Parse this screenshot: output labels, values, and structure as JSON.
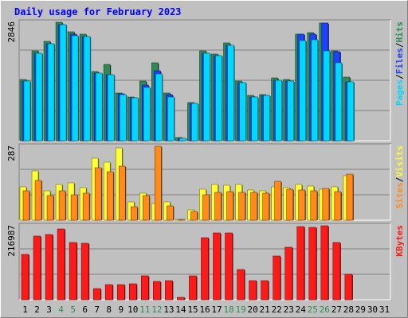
{
  "title": "Daily usage for February 2023",
  "colors": {
    "background": "#C0C0C0",
    "border_light": "#FFFFFF",
    "border_dark": "#808080",
    "title": "#0000FF",
    "hits": "#2E8B57",
    "files": "#1E40FF",
    "pages": "#00D8FF",
    "visits": "#FFFF33",
    "sites": "#FF8C1A",
    "kbytes": "#FF1A1A",
    "weekend_label": "#2E8B57",
    "tick_label": "#000000"
  },
  "chart_data": {
    "type": "bar",
    "categories": [
      "1",
      "2",
      "3",
      "4",
      "5",
      "6",
      "7",
      "8",
      "9",
      "10",
      "11",
      "12",
      "13",
      "14",
      "15",
      "16",
      "17",
      "18",
      "19",
      "20",
      "21",
      "22",
      "23",
      "24",
      "25",
      "26",
      "27",
      "28",
      "29",
      "30",
      "31"
    ],
    "weekend_categories": [
      "4",
      "5",
      "11",
      "12",
      "18",
      "19",
      "25",
      "26"
    ],
    "panels": [
      {
        "name": "hits-files-pages",
        "ymax_label": "2846",
        "ymax": 2846,
        "axis_labels": [
          {
            "text": "Hits",
            "color_key": "hits"
          },
          {
            "text": "Files",
            "color_key": "files"
          },
          {
            "text": "Pages",
            "color_key": "pages"
          }
        ],
        "series": [
          {
            "name": "Hits",
            "color_key": "hits",
            "values": [
              1475,
              2157,
              2380,
              2846,
              2610,
              2560,
              1670,
              1840,
              1150,
              1060,
              1430,
              1870,
              1140,
              75,
              920,
              2150,
              2080,
              2340,
              1440,
              1090,
              1110,
              1510,
              1470,
              2560,
              2600,
              2820,
              2150,
              1520,
              0,
              0,
              0
            ]
          },
          {
            "name": "Files",
            "color_key": "files",
            "values": [
              1430,
              2100,
              2330,
              2780,
              2560,
              2500,
              1620,
              1590,
              1120,
              1040,
              1330,
              1690,
              1100,
              60,
              890,
              2110,
              2050,
              2300,
              1390,
              1060,
              1080,
              1460,
              1440,
              2560,
              2560,
              2820,
              2140,
              1420,
              0,
              0,
              0
            ]
          },
          {
            "name": "Pages",
            "color_key": "pages",
            "values": [
              1430,
              2100,
              2330,
              2780,
              2520,
              2500,
              1620,
              1590,
              1100,
              1040,
              1280,
              1600,
              1060,
              60,
              890,
              2110,
              2050,
              2300,
              1390,
              1060,
              1080,
              1460,
              1440,
              2410,
              2430,
              2150,
              1880,
              1420,
              0,
              0,
              0
            ]
          }
        ]
      },
      {
        "name": "visits-sites",
        "ymax_label": "287",
        "ymax": 287,
        "axis_labels": [
          {
            "text": "Visits",
            "color_key": "visits"
          },
          {
            "text": "Sites",
            "color_key": "sites"
          }
        ],
        "series": [
          {
            "name": "Visits",
            "color_key": "visits",
            "values": [
              130,
              190,
              115,
              140,
              145,
              125,
              242,
              225,
              280,
              70,
              105,
              65,
              70,
              2,
              40,
              120,
              140,
              135,
              140,
              117,
              113,
              130,
              125,
              140,
              132,
              120,
              130,
              172,
              0,
              0,
              0
            ]
          },
          {
            "name": "Sites",
            "color_key": "sites",
            "values": [
              115,
              155,
              95,
              115,
              100,
              105,
              205,
              187,
              210,
              52,
              95,
              287,
              55,
              1,
              35,
              98,
              108,
              110,
              108,
              107,
              105,
              150,
              120,
              118,
              115,
              122,
              112,
              180,
              0,
              0,
              0
            ]
          }
        ]
      },
      {
        "name": "kbytes",
        "ymax_label": "216987",
        "ymax": 216987,
        "axis_labels": [
          {
            "text": "KBytes",
            "color_key": "kbytes"
          }
        ],
        "series": [
          {
            "name": "KBytes",
            "color_key": "kbytes",
            "values": [
              133000,
              186000,
              191000,
              208000,
              167000,
              165000,
              33000,
              45000,
              45000,
              47000,
              70000,
              53000,
              56000,
              7000,
              69000,
              182000,
              195000,
              195000,
              88000,
              55000,
              57000,
              128000,
              153000,
              214000,
              212000,
              218000,
              167000,
              75000,
              0,
              0,
              0
            ]
          }
        ]
      }
    ]
  }
}
